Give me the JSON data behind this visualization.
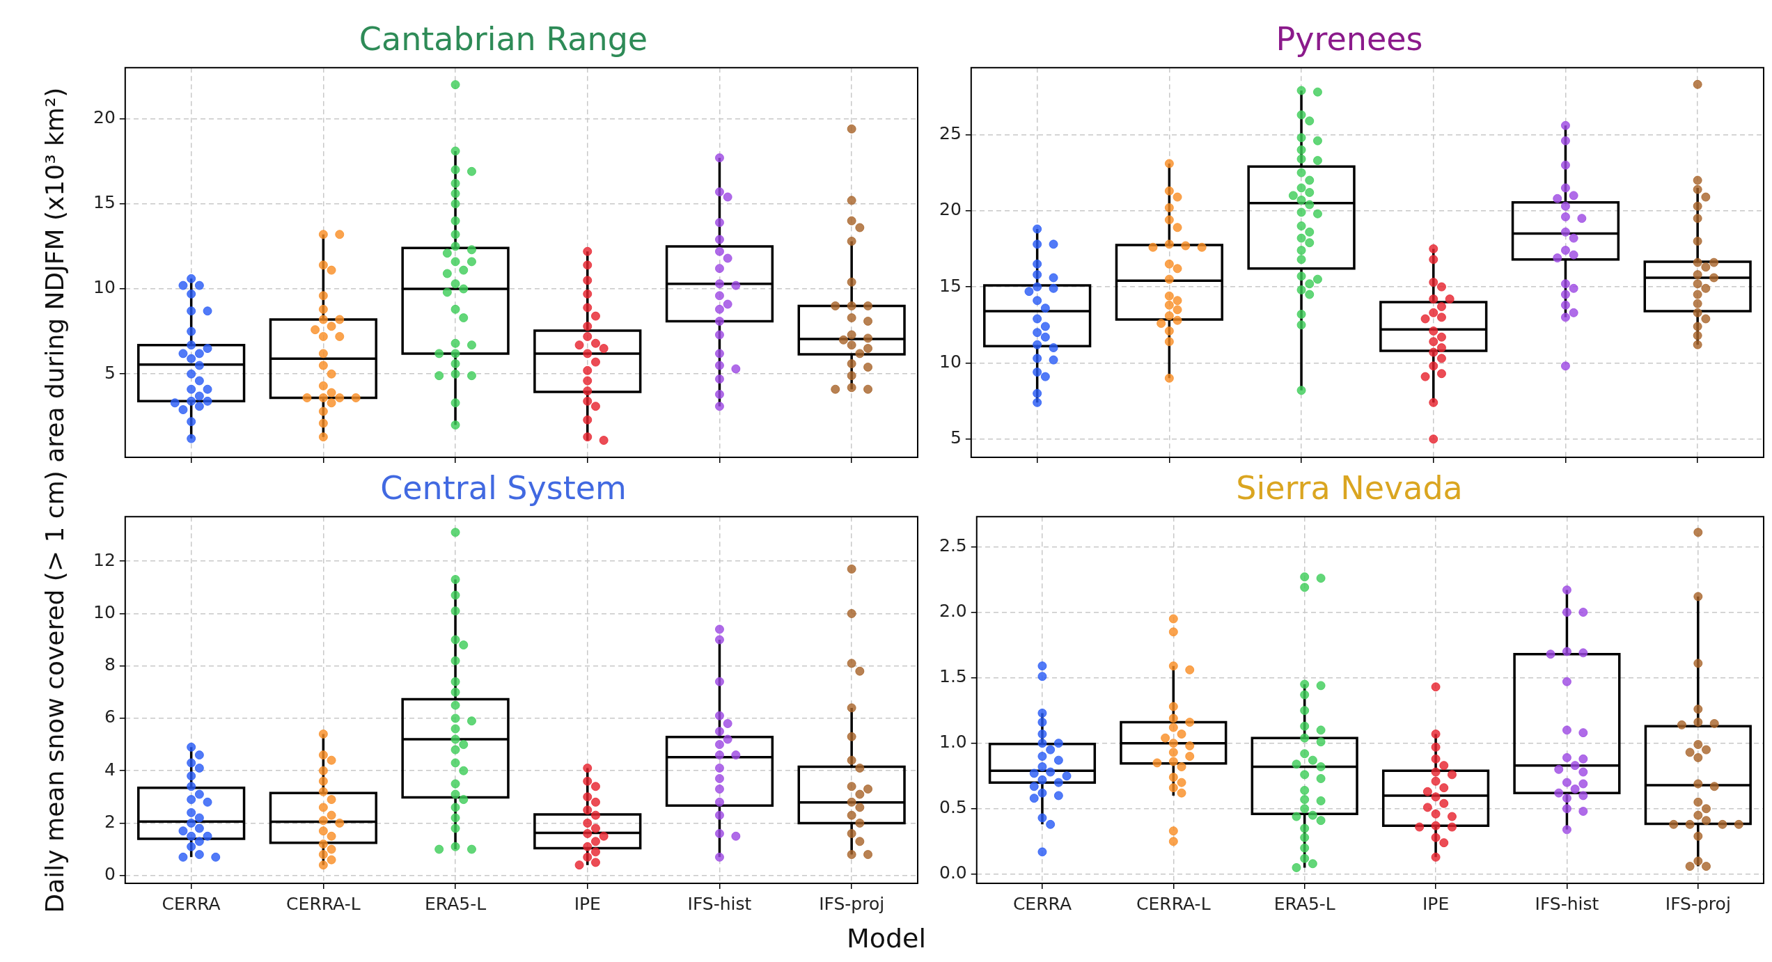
{
  "chart_data": [
    {
      "type": "box",
      "title": "Cantabrian Range",
      "ylabel": "Daily mean snow covered (>  1 cm) area during NDJFM (x10³ km²)",
      "categories": [
        "CERRA",
        "CERRA-L",
        "ERA5-L",
        "IPE",
        "IFS-hist",
        "IFS-proj"
      ],
      "ylim": [
        0.1,
        23.0
      ],
      "yticks": [
        5,
        10,
        15,
        20
      ],
      "grid": true,
      "tick_labels": "y",
      "marker": "circle",
      "boxes": [
        {
          "low": 1.2,
          "q1": 3.4,
          "median": 5.55,
          "q3": 6.7,
          "high": 10.6
        },
        {
          "low": 1.3,
          "q1": 3.6,
          "median": 5.9,
          "q3": 8.2,
          "high": 13.2
        },
        {
          "low": 2.0,
          "q1": 6.2,
          "median": 10.0,
          "q3": 12.4,
          "high": 18.1
        },
        {
          "low": 1.1,
          "q1": 3.95,
          "median": 6.2,
          "q3": 7.55,
          "high": 12.2
        },
        {
          "low": 3.1,
          "q1": 8.1,
          "median": 10.3,
          "q3": 12.5,
          "high": 17.7
        },
        {
          "low": 4.1,
          "q1": 6.15,
          "median": 7.05,
          "q3": 9.0,
          "high": 12.8
        }
      ],
      "series": [
        {
          "type": "scatter",
          "color": "#2a5cf5",
          "x": [
            "CERRA",
            "CERRA",
            "CERRA",
            "CERRA",
            "CERRA",
            "CERRA",
            "CERRA",
            "CERRA",
            "CERRA",
            "CERRA",
            "CERRA",
            "CERRA",
            "CERRA",
            "CERRA",
            "CERRA",
            "CERRA",
            "CERRA",
            "CERRA",
            "CERRA",
            "CERRA",
            "CERRA",
            "CERRA",
            "CERRA",
            "CERRA",
            "CERRA"
          ],
          "values": [
            10.6,
            10.2,
            10.2,
            9.7,
            8.7,
            8.7,
            7.5,
            6.7,
            6.5,
            6.2,
            6.2,
            5.9,
            5.5,
            5.0,
            4.6,
            4.1,
            4.1,
            3.7,
            3.4,
            3.4,
            3.3,
            3.1,
            2.9,
            2.2,
            1.2
          ]
        },
        {
          "type": "scatter",
          "color": "#f98e26",
          "x": [
            "CERRA-L",
            "CERRA-L",
            "CERRA-L",
            "CERRA-L",
            "CERRA-L",
            "CERRA-L",
            "CERRA-L",
            "CERRA-L",
            "CERRA-L",
            "CERRA-L",
            "CERRA-L",
            "CERRA-L",
            "CERRA-L",
            "CERRA-L",
            "CERRA-L",
            "CERRA-L",
            "CERRA-L",
            "CERRA-L",
            "CERRA-L",
            "CERRA-L",
            "CERRA-L",
            "CERRA-L",
            "CERRA-L",
            "CERRA-L",
            "CERRA-L"
          ],
          "values": [
            13.2,
            13.2,
            11.4,
            11.1,
            9.6,
            8.8,
            8.2,
            8.2,
            7.8,
            7.6,
            7.2,
            7.2,
            6.2,
            5.5,
            5.0,
            4.3,
            3.9,
            3.6,
            3.6,
            3.6,
            3.6,
            3.3,
            2.8,
            2.1,
            1.3
          ]
        },
        {
          "type": "scatter",
          "color": "#3fcd5a",
          "x": [
            "ERA5-L",
            "ERA5-L",
            "ERA5-L",
            "ERA5-L",
            "ERA5-L",
            "ERA5-L",
            "ERA5-L",
            "ERA5-L",
            "ERA5-L",
            "ERA5-L",
            "ERA5-L",
            "ERA5-L",
            "ERA5-L",
            "ERA5-L",
            "ERA5-L",
            "ERA5-L",
            "ERA5-L",
            "ERA5-L",
            "ERA5-L",
            "ERA5-L",
            "ERA5-L",
            "ERA5-L",
            "ERA5-L",
            "ERA5-L",
            "ERA5-L",
            "ERA5-L",
            "ERA5-L",
            "ERA5-L",
            "ERA5-L",
            "ERA5-L",
            "ERA5-L"
          ],
          "values": [
            22.0,
            18.1,
            17.0,
            16.9,
            16.2,
            15.6,
            15.0,
            14.0,
            13.2,
            12.5,
            12.3,
            12.1,
            11.6,
            11.6,
            11.1,
            10.9,
            10.3,
            10.0,
            9.8,
            8.8,
            8.3,
            6.8,
            6.7,
            6.2,
            6.2,
            5.6,
            5.0,
            4.9,
            4.9,
            3.3,
            2.0
          ]
        },
        {
          "type": "scatter",
          "color": "#e6242f",
          "x": [
            "IPE",
            "IPE",
            "IPE",
            "IPE",
            "IPE",
            "IPE",
            "IPE",
            "IPE",
            "IPE",
            "IPE",
            "IPE",
            "IPE",
            "IPE",
            "IPE",
            "IPE",
            "IPE",
            "IPE",
            "IPE",
            "IPE",
            "IPE",
            "IPE"
          ],
          "values": [
            12.2,
            11.4,
            10.5,
            9.7,
            8.9,
            8.4,
            7.8,
            7.2,
            6.8,
            6.7,
            6.5,
            6.2,
            5.7,
            5.2,
            4.6,
            4.0,
            3.4,
            3.1,
            2.3,
            1.3,
            1.1
          ]
        },
        {
          "type": "scatter",
          "color": "#9d4ae3",
          "x": [
            "IFS-hist",
            "IFS-hist",
            "IFS-hist",
            "IFS-hist",
            "IFS-hist",
            "IFS-hist",
            "IFS-hist",
            "IFS-hist",
            "IFS-hist",
            "IFS-hist",
            "IFS-hist",
            "IFS-hist",
            "IFS-hist",
            "IFS-hist",
            "IFS-hist",
            "IFS-hist",
            "IFS-hist",
            "IFS-hist",
            "IFS-hist",
            "IFS-hist",
            "IFS-hist"
          ],
          "values": [
            17.7,
            15.7,
            15.4,
            13.9,
            12.9,
            12.2,
            11.8,
            11.2,
            10.3,
            10.2,
            9.6,
            9.1,
            8.8,
            8.1,
            7.3,
            6.2,
            5.5,
            5.3,
            4.7,
            3.8,
            3.1
          ]
        },
        {
          "type": "scatter",
          "color": "#a8642b",
          "x": [
            "IFS-proj",
            "IFS-proj",
            "IFS-proj",
            "IFS-proj",
            "IFS-proj",
            "IFS-proj",
            "IFS-proj",
            "IFS-proj",
            "IFS-proj",
            "IFS-proj",
            "IFS-proj",
            "IFS-proj",
            "IFS-proj",
            "IFS-proj",
            "IFS-proj",
            "IFS-proj",
            "IFS-proj",
            "IFS-proj",
            "IFS-proj",
            "IFS-proj",
            "IFS-proj",
            "IFS-proj",
            "IFS-proj"
          ],
          "values": [
            19.4,
            15.2,
            14.0,
            13.6,
            12.8,
            10.4,
            9.0,
            9.0,
            9.0,
            8.3,
            8.1,
            7.3,
            7.1,
            7.0,
            6.7,
            6.5,
            6.2,
            5.6,
            5.4,
            4.9,
            4.2,
            4.1,
            4.1
          ]
        }
      ]
    },
    {
      "type": "box",
      "title": "Pyrenees",
      "categories": [
        "CERRA",
        "CERRA-L",
        "ERA5-L",
        "IPE",
        "IFS-hist",
        "IFS-proj"
      ],
      "ylim": [
        3.8,
        29.4
      ],
      "yticks": [
        5,
        10,
        15,
        20,
        25
      ],
      "grid": true,
      "tick_labels": "y",
      "marker": "circle",
      "boxes": [
        {
          "low": 7.4,
          "q1": 11.1,
          "median": 13.4,
          "q3": 15.1,
          "high": 18.8
        },
        {
          "low": 9.0,
          "q1": 12.85,
          "median": 15.4,
          "q3": 17.75,
          "high": 23.1
        },
        {
          "low": 8.2,
          "q1": 16.2,
          "median": 20.5,
          "q3": 22.9,
          "high": 27.9
        },
        {
          "low": 7.4,
          "q1": 10.8,
          "median": 12.2,
          "q3": 14.0,
          "high": 17.5
        },
        {
          "low": 13.0,
          "q1": 16.8,
          "median": 18.5,
          "q3": 20.55,
          "high": 25.6
        },
        {
          "low": 11.2,
          "q1": 13.4,
          "median": 15.6,
          "q3": 16.65,
          "high": 21.5
        }
      ],
      "series": [
        {
          "type": "scatter",
          "color": "#2a5cf5",
          "x": [
            "CERRA",
            "CERRA",
            "CERRA",
            "CERRA",
            "CERRA",
            "CERRA",
            "CERRA",
            "CERRA",
            "CERRA",
            "CERRA",
            "CERRA",
            "CERRA",
            "CERRA",
            "CERRA",
            "CERRA",
            "CERRA",
            "CERRA",
            "CERRA",
            "CERRA",
            "CERRA",
            "CERRA",
            "CERRA",
            "CERRA"
          ],
          "values": [
            18.8,
            17.8,
            17.8,
            16.5,
            15.8,
            15.6,
            15.0,
            14.9,
            14.7,
            14.1,
            13.6,
            12.9,
            12.4,
            12.0,
            11.7,
            11.2,
            11.0,
            10.3,
            10.2,
            9.4,
            9.1,
            8.0,
            7.4
          ]
        },
        {
          "type": "scatter",
          "color": "#f98e26",
          "x": [
            "CERRA-L",
            "CERRA-L",
            "CERRA-L",
            "CERRA-L",
            "CERRA-L",
            "CERRA-L",
            "CERRA-L",
            "CERRA-L",
            "CERRA-L",
            "CERRA-L",
            "CERRA-L",
            "CERRA-L",
            "CERRA-L",
            "CERRA-L",
            "CERRA-L",
            "CERRA-L",
            "CERRA-L",
            "CERRA-L",
            "CERRA-L",
            "CERRA-L",
            "CERRA-L",
            "CERRA-L",
            "CERRA-L"
          ],
          "values": [
            23.1,
            21.3,
            20.9,
            20.2,
            19.4,
            18.9,
            17.8,
            17.7,
            17.6,
            17.6,
            16.5,
            16.2,
            15.5,
            14.4,
            14.1,
            13.8,
            13.5,
            13.1,
            12.8,
            12.6,
            12.1,
            11.4,
            9.0
          ]
        },
        {
          "type": "scatter",
          "color": "#3fcd5a",
          "x": [
            "ERA5-L",
            "ERA5-L",
            "ERA5-L",
            "ERA5-L",
            "ERA5-L",
            "ERA5-L",
            "ERA5-L",
            "ERA5-L",
            "ERA5-L",
            "ERA5-L",
            "ERA5-L",
            "ERA5-L",
            "ERA5-L",
            "ERA5-L",
            "ERA5-L",
            "ERA5-L",
            "ERA5-L",
            "ERA5-L",
            "ERA5-L",
            "ERA5-L",
            "ERA5-L",
            "ERA5-L",
            "ERA5-L",
            "ERA5-L",
            "ERA5-L",
            "ERA5-L",
            "ERA5-L",
            "ERA5-L",
            "ERA5-L",
            "ERA5-L",
            "ERA5-L",
            "ERA5-L"
          ],
          "values": [
            27.9,
            27.8,
            26.3,
            25.9,
            24.8,
            24.6,
            24.0,
            23.4,
            23.3,
            22.5,
            22.0,
            21.5,
            21.2,
            21.0,
            20.7,
            20.4,
            19.9,
            19.8,
            19.0,
            18.6,
            18.2,
            17.9,
            17.4,
            16.8,
            15.7,
            15.5,
            15.2,
            14.8,
            14.5,
            13.2,
            12.5,
            8.2
          ]
        },
        {
          "type": "scatter",
          "color": "#e6242f",
          "x": [
            "IPE",
            "IPE",
            "IPE",
            "IPE",
            "IPE",
            "IPE",
            "IPE",
            "IPE",
            "IPE",
            "IPE",
            "IPE",
            "IPE",
            "IPE",
            "IPE",
            "IPE",
            "IPE",
            "IPE",
            "IPE",
            "IPE",
            "IPE",
            "IPE"
          ],
          "values": [
            17.5,
            16.8,
            15.3,
            15.0,
            14.2,
            14.2,
            13.7,
            13.3,
            13.0,
            12.9,
            12.1,
            11.7,
            11.4,
            11.0,
            10.7,
            10.3,
            9.8,
            9.3,
            9.1,
            7.4,
            5.0
          ]
        },
        {
          "type": "scatter",
          "color": "#9d4ae3",
          "x": [
            "IFS-hist",
            "IFS-hist",
            "IFS-hist",
            "IFS-hist",
            "IFS-hist",
            "IFS-hist",
            "IFS-hist",
            "IFS-hist",
            "IFS-hist",
            "IFS-hist",
            "IFS-hist",
            "IFS-hist",
            "IFS-hist",
            "IFS-hist",
            "IFS-hist",
            "IFS-hist",
            "IFS-hist",
            "IFS-hist",
            "IFS-hist",
            "IFS-hist",
            "IFS-hist"
          ],
          "values": [
            25.6,
            24.6,
            23.0,
            21.5,
            21.0,
            20.8,
            20.3,
            19.6,
            19.5,
            18.6,
            18.2,
            17.4,
            17.1,
            16.9,
            15.2,
            14.9,
            14.5,
            13.8,
            13.3,
            13.0,
            9.8
          ]
        },
        {
          "type": "scatter",
          "color": "#a8642b",
          "x": [
            "IFS-proj",
            "IFS-proj",
            "IFS-proj",
            "IFS-proj",
            "IFS-proj",
            "IFS-proj",
            "IFS-proj",
            "IFS-proj",
            "IFS-proj",
            "IFS-proj",
            "IFS-proj",
            "IFS-proj",
            "IFS-proj",
            "IFS-proj",
            "IFS-proj",
            "IFS-proj",
            "IFS-proj",
            "IFS-proj",
            "IFS-proj",
            "IFS-proj",
            "IFS-proj"
          ],
          "values": [
            28.3,
            22.0,
            21.4,
            20.9,
            20.3,
            19.5,
            18.0,
            16.6,
            16.6,
            16.3,
            15.8,
            15.6,
            15.2,
            14.9,
            14.5,
            13.9,
            13.3,
            12.9,
            12.4,
            11.8,
            11.2
          ]
        }
      ]
    },
    {
      "type": "box",
      "title": "Central System",
      "xlabel": "Model",
      "categories": [
        "CERRA",
        "CERRA-L",
        "ERA5-L",
        "IPE",
        "IFS-hist",
        "IFS-proj"
      ],
      "ylim": [
        -0.3,
        13.7
      ],
      "yticks": [
        0,
        2,
        4,
        6,
        8,
        10,
        12
      ],
      "grid": true,
      "marker": "circle",
      "boxes": [
        {
          "low": 0.7,
          "q1": 1.4,
          "median": 2.06,
          "q3": 3.35,
          "high": 4.9
        },
        {
          "low": 0.4,
          "q1": 1.25,
          "median": 2.05,
          "q3": 3.15,
          "high": 5.4
        },
        {
          "low": 1.0,
          "q1": 2.98,
          "median": 5.2,
          "q3": 6.73,
          "high": 11.3
        },
        {
          "low": 0.4,
          "q1": 1.04,
          "median": 1.63,
          "q3": 2.33,
          "high": 4.1
        },
        {
          "low": 0.7,
          "q1": 2.67,
          "median": 4.52,
          "q3": 5.29,
          "high": 9.0
        },
        {
          "low": 0.8,
          "q1": 2.0,
          "median": 2.79,
          "q3": 4.15,
          "high": 6.4
        }
      ],
      "series": [
        {
          "type": "scatter",
          "color": "#2a5cf5",
          "x": [
            "CERRA",
            "CERRA",
            "CERRA",
            "CERRA",
            "CERRA",
            "CERRA",
            "CERRA",
            "CERRA",
            "CERRA",
            "CERRA",
            "CERRA",
            "CERRA",
            "CERRA",
            "CERRA",
            "CERRA",
            "CERRA",
            "CERRA",
            "CERRA",
            "CERRA",
            "CERRA",
            "CERRA"
          ],
          "values": [
            4.9,
            4.6,
            4.3,
            4.1,
            3.8,
            3.4,
            3.1,
            2.9,
            2.8,
            2.4,
            2.2,
            2.0,
            1.8,
            1.7,
            1.5,
            1.5,
            1.3,
            1.1,
            0.8,
            0.7,
            0.7
          ]
        },
        {
          "type": "scatter",
          "color": "#f98e26",
          "x": [
            "CERRA-L",
            "CERRA-L",
            "CERRA-L",
            "CERRA-L",
            "CERRA-L",
            "CERRA-L",
            "CERRA-L",
            "CERRA-L",
            "CERRA-L",
            "CERRA-L",
            "CERRA-L",
            "CERRA-L",
            "CERRA-L",
            "CERRA-L",
            "CERRA-L",
            "CERRA-L",
            "CERRA-L",
            "CERRA-L"
          ],
          "values": [
            5.4,
            4.6,
            4.4,
            4.0,
            3.6,
            3.2,
            2.9,
            2.6,
            2.3,
            2.1,
            2.0,
            1.7,
            1.5,
            1.2,
            1.0,
            0.8,
            0.6,
            0.4
          ]
        },
        {
          "type": "scatter",
          "color": "#3fcd5a",
          "x": [
            "ERA5-L",
            "ERA5-L",
            "ERA5-L",
            "ERA5-L",
            "ERA5-L",
            "ERA5-L",
            "ERA5-L",
            "ERA5-L",
            "ERA5-L",
            "ERA5-L",
            "ERA5-L",
            "ERA5-L",
            "ERA5-L",
            "ERA5-L",
            "ERA5-L",
            "ERA5-L",
            "ERA5-L",
            "ERA5-L",
            "ERA5-L",
            "ERA5-L",
            "ERA5-L",
            "ERA5-L",
            "ERA5-L",
            "ERA5-L",
            "ERA5-L",
            "ERA5-L",
            "ERA5-L"
          ],
          "values": [
            13.1,
            11.3,
            10.7,
            10.1,
            9.0,
            8.8,
            8.2,
            7.4,
            7.0,
            6.5,
            6.0,
            5.9,
            5.6,
            5.2,
            5.0,
            4.8,
            4.3,
            4.0,
            3.5,
            3.1,
            2.9,
            2.6,
            2.2,
            1.8,
            1.1,
            1.0,
            1.0
          ]
        },
        {
          "type": "scatter",
          "color": "#e6242f",
          "x": [
            "IPE",
            "IPE",
            "IPE",
            "IPE",
            "IPE",
            "IPE",
            "IPE",
            "IPE",
            "IPE",
            "IPE",
            "IPE",
            "IPE",
            "IPE",
            "IPE",
            "IPE",
            "IPE",
            "IPE"
          ],
          "values": [
            4.1,
            3.6,
            3.4,
            3.0,
            2.8,
            2.5,
            2.3,
            2.0,
            1.8,
            1.6,
            1.5,
            1.3,
            1.1,
            0.9,
            0.7,
            0.5,
            0.4
          ]
        },
        {
          "type": "scatter",
          "color": "#9d4ae3",
          "x": [
            "IFS-hist",
            "IFS-hist",
            "IFS-hist",
            "IFS-hist",
            "IFS-hist",
            "IFS-hist",
            "IFS-hist",
            "IFS-hist",
            "IFS-hist",
            "IFS-hist",
            "IFS-hist",
            "IFS-hist",
            "IFS-hist",
            "IFS-hist",
            "IFS-hist",
            "IFS-hist",
            "IFS-hist",
            "IFS-hist"
          ],
          "values": [
            9.4,
            9.0,
            7.4,
            6.1,
            5.8,
            5.5,
            5.2,
            5.0,
            4.6,
            4.6,
            4.1,
            3.7,
            3.3,
            2.8,
            2.3,
            1.6,
            1.5,
            0.7
          ]
        },
        {
          "type": "scatter",
          "color": "#a8642b",
          "x": [
            "IFS-proj",
            "IFS-proj",
            "IFS-proj",
            "IFS-proj",
            "IFS-proj",
            "IFS-proj",
            "IFS-proj",
            "IFS-proj",
            "IFS-proj",
            "IFS-proj",
            "IFS-proj",
            "IFS-proj",
            "IFS-proj",
            "IFS-proj",
            "IFS-proj",
            "IFS-proj",
            "IFS-proj",
            "IFS-proj",
            "IFS-proj"
          ],
          "values": [
            11.7,
            10.0,
            8.1,
            7.8,
            6.4,
            5.3,
            4.4,
            4.1,
            3.4,
            3.3,
            3.1,
            2.8,
            2.6,
            2.3,
            2.0,
            1.6,
            1.3,
            0.8,
            0.8
          ]
        }
      ]
    },
    {
      "type": "box",
      "title": "Sierra Nevada",
      "categories": [
        "CERRA",
        "CERRA-L",
        "ERA5-L",
        "IPE",
        "IFS-hist",
        "IFS-proj"
      ],
      "ylim": [
        -0.07,
        2.73
      ],
      "yticks": [
        {
          "value": 0,
          "label": "0.0"
        },
        {
          "value": 0.5,
          "label": "0.5"
        },
        {
          "value": 1,
          "label": "1.0"
        },
        {
          "value": 1.5,
          "label": "1.5"
        },
        {
          "value": 2,
          "label": "2.0"
        },
        {
          "value": 2.5,
          "label": "2.5"
        }
      ],
      "grid": true,
      "marker": "circle",
      "boxes": [
        {
          "low": 0.38,
          "q1": 0.7,
          "median": 0.79,
          "q3": 0.995,
          "high": 1.23
        },
        {
          "low": 0.6,
          "q1": 0.845,
          "median": 1.0,
          "q3": 1.16,
          "high": 1.59
        },
        {
          "low": 0.05,
          "q1": 0.46,
          "median": 0.82,
          "q3": 1.04,
          "high": 1.45
        },
        {
          "low": 0.13,
          "q1": 0.37,
          "median": 0.6,
          "q3": 0.79,
          "high": 1.07
        },
        {
          "low": 0.34,
          "q1": 0.62,
          "median": 0.83,
          "q3": 1.68,
          "high": 2.17
        },
        {
          "low": 0.06,
          "q1": 0.385,
          "median": 0.68,
          "q3": 1.13,
          "high": 2.12
        }
      ],
      "series": [
        {
          "type": "scatter",
          "color": "#2a5cf5",
          "x": [
            "CERRA",
            "CERRA",
            "CERRA",
            "CERRA",
            "CERRA",
            "CERRA",
            "CERRA",
            "CERRA",
            "CERRA",
            "CERRA",
            "CERRA",
            "CERRA",
            "CERRA",
            "CERRA",
            "CERRA",
            "CERRA",
            "CERRA",
            "CERRA",
            "CERRA",
            "CERRA",
            "CERRA",
            "CERRA",
            "CERRA"
          ],
          "values": [
            1.59,
            1.51,
            1.23,
            1.16,
            1.07,
            1.0,
            1.0,
            0.95,
            0.9,
            0.87,
            0.82,
            0.78,
            0.77,
            0.75,
            0.72,
            0.7,
            0.67,
            0.62,
            0.6,
            0.58,
            0.43,
            0.38,
            0.17
          ]
        },
        {
          "type": "scatter",
          "color": "#f98e26",
          "x": [
            "CERRA-L",
            "CERRA-L",
            "CERRA-L",
            "CERRA-L",
            "CERRA-L",
            "CERRA-L",
            "CERRA-L",
            "CERRA-L",
            "CERRA-L",
            "CERRA-L",
            "CERRA-L",
            "CERRA-L",
            "CERRA-L",
            "CERRA-L",
            "CERRA-L",
            "CERRA-L",
            "CERRA-L",
            "CERRA-L",
            "CERRA-L",
            "CERRA-L",
            "CERRA-L",
            "CERRA-L",
            "CERRA-L"
          ],
          "values": [
            1.95,
            1.85,
            1.59,
            1.56,
            1.28,
            1.19,
            1.16,
            1.12,
            1.07,
            1.04,
            1.0,
            0.98,
            0.93,
            0.9,
            0.86,
            0.85,
            0.82,
            0.74,
            0.7,
            0.66,
            0.62,
            0.33,
            0.25
          ]
        },
        {
          "type": "scatter",
          "color": "#3fcd5a",
          "x": [
            "ERA5-L",
            "ERA5-L",
            "ERA5-L",
            "ERA5-L",
            "ERA5-L",
            "ERA5-L",
            "ERA5-L",
            "ERA5-L",
            "ERA5-L",
            "ERA5-L",
            "ERA5-L",
            "ERA5-L",
            "ERA5-L",
            "ERA5-L",
            "ERA5-L",
            "ERA5-L",
            "ERA5-L",
            "ERA5-L",
            "ERA5-L",
            "ERA5-L",
            "ERA5-L",
            "ERA5-L",
            "ERA5-L",
            "ERA5-L",
            "ERA5-L",
            "ERA5-L",
            "ERA5-L",
            "ERA5-L",
            "ERA5-L",
            "ERA5-L"
          ],
          "values": [
            2.27,
            2.26,
            2.19,
            1.45,
            1.44,
            1.37,
            1.25,
            1.13,
            1.1,
            1.04,
            1.01,
            0.92,
            0.87,
            0.84,
            0.82,
            0.76,
            0.73,
            0.64,
            0.57,
            0.56,
            0.5,
            0.45,
            0.44,
            0.41,
            0.35,
            0.28,
            0.2,
            0.12,
            0.08,
            0.05
          ]
        },
        {
          "type": "scatter",
          "color": "#e6242f",
          "x": [
            "IPE",
            "IPE",
            "IPE",
            "IPE",
            "IPE",
            "IPE",
            "IPE",
            "IPE",
            "IPE",
            "IPE",
            "IPE",
            "IPE",
            "IPE",
            "IPE",
            "IPE",
            "IPE",
            "IPE",
            "IPE",
            "IPE",
            "IPE",
            "IPE"
          ],
          "values": [
            1.43,
            1.07,
            0.97,
            0.88,
            0.83,
            0.78,
            0.76,
            0.71,
            0.66,
            0.63,
            0.59,
            0.54,
            0.51,
            0.46,
            0.44,
            0.37,
            0.36,
            0.36,
            0.28,
            0.24,
            0.13
          ]
        },
        {
          "type": "scatter",
          "color": "#9d4ae3",
          "x": [
            "IFS-hist",
            "IFS-hist",
            "IFS-hist",
            "IFS-hist",
            "IFS-hist",
            "IFS-hist",
            "IFS-hist",
            "IFS-hist",
            "IFS-hist",
            "IFS-hist",
            "IFS-hist",
            "IFS-hist",
            "IFS-hist",
            "IFS-hist",
            "IFS-hist",
            "IFS-hist",
            "IFS-hist",
            "IFS-hist",
            "IFS-hist",
            "IFS-hist",
            "IFS-hist",
            "IFS-hist",
            "IFS-hist"
          ],
          "values": [
            2.17,
            2.0,
            2.0,
            1.7,
            1.69,
            1.68,
            1.47,
            1.1,
            1.08,
            0.89,
            0.88,
            0.83,
            0.8,
            0.78,
            0.7,
            0.69,
            0.65,
            0.62,
            0.6,
            0.58,
            0.5,
            0.48,
            0.34
          ]
        },
        {
          "type": "scatter",
          "color": "#a8642b",
          "x": [
            "IFS-proj",
            "IFS-proj",
            "IFS-proj",
            "IFS-proj",
            "IFS-proj",
            "IFS-proj",
            "IFS-proj",
            "IFS-proj",
            "IFS-proj",
            "IFS-proj",
            "IFS-proj",
            "IFS-proj",
            "IFS-proj",
            "IFS-proj",
            "IFS-proj",
            "IFS-proj",
            "IFS-proj",
            "IFS-proj",
            "IFS-proj",
            "IFS-proj",
            "IFS-proj",
            "IFS-proj",
            "IFS-proj",
            "IFS-proj",
            "IFS-proj"
          ],
          "values": [
            2.61,
            2.12,
            1.61,
            1.26,
            1.16,
            1.15,
            1.14,
            0.99,
            0.95,
            0.93,
            0.89,
            0.69,
            0.67,
            0.55,
            0.5,
            0.45,
            0.41,
            0.38,
            0.38,
            0.38,
            0.38,
            0.29,
            0.1,
            0.06,
            0.06
          ]
        }
      ]
    }
  ]
}
